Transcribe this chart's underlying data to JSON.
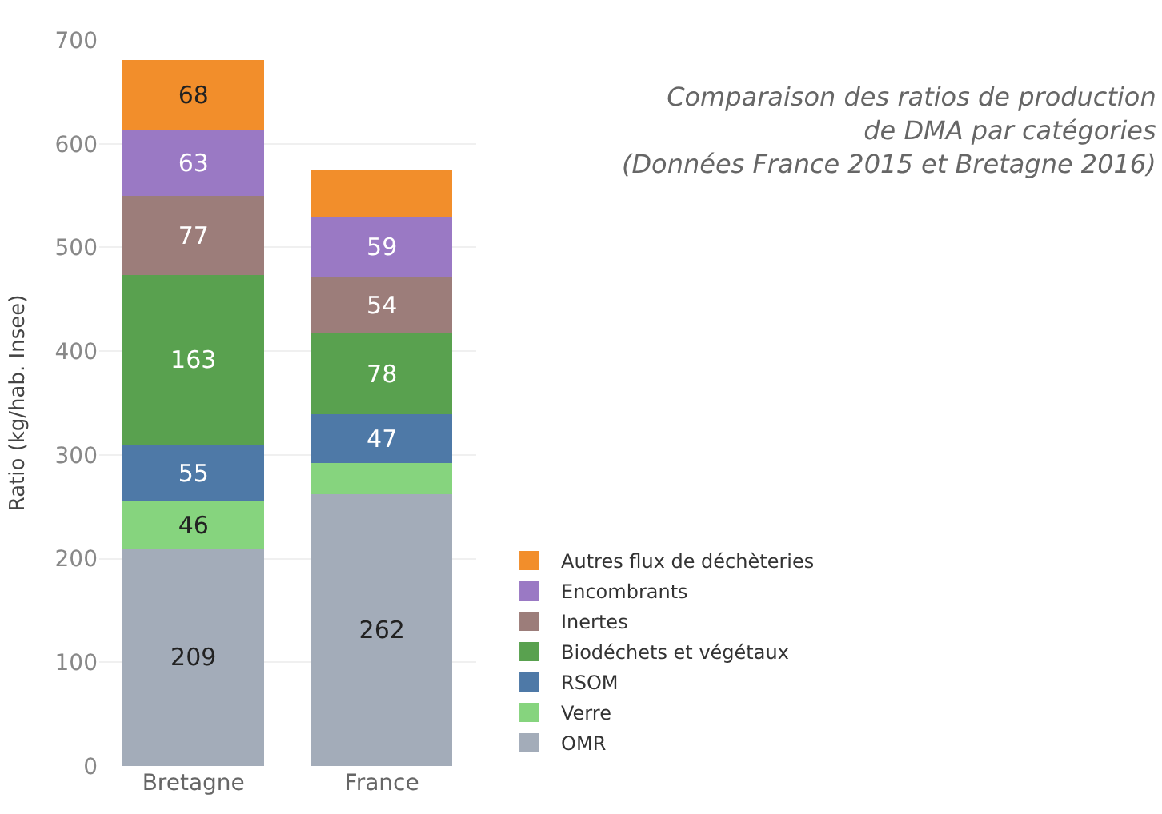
{
  "chart_data": {
    "type": "bar",
    "stacked": true,
    "title": "Comparaison des ratios de production\nde DMA par catégories\n(Données France 2015 et Bretagne 2016)",
    "ylabel": "Ratio (kg/hab. Insee)",
    "categories": [
      "Bretagne",
      "France"
    ],
    "series": [
      {
        "name": "OMR",
        "color": "#a3acb9",
        "values": [
          209,
          262
        ],
        "value_labels": [
          "209",
          "262"
        ]
      },
      {
        "name": "Verre",
        "color": "#86d47e",
        "values": [
          46,
          30
        ],
        "value_labels": [
          "46",
          null
        ]
      },
      {
        "name": "RSOM",
        "color": "#4e79a7",
        "values": [
          55,
          47
        ],
        "value_labels": [
          "55",
          "47"
        ]
      },
      {
        "name": "Biodéchets et végétaux",
        "color": "#59a14f",
        "values": [
          163,
          78
        ],
        "value_labels": [
          "163",
          "78"
        ]
      },
      {
        "name": "Inertes",
        "color": "#9c7d7a",
        "values": [
          77,
          54
        ],
        "value_labels": [
          "77",
          "54"
        ]
      },
      {
        "name": "Encombrants",
        "color": "#9a79c4",
        "values": [
          63,
          59
        ],
        "value_labels": [
          "63",
          "59"
        ]
      },
      {
        "name": "Autres flux de déchèteries",
        "color": "#f28e2b",
        "values": [
          68,
          44
        ],
        "value_labels": [
          "68",
          null
        ]
      }
    ],
    "ylim": [
      0,
      700
    ],
    "yticks": [
      0,
      100,
      200,
      300,
      400,
      500,
      600,
      700
    ],
    "grid": "y",
    "legend": "bottom right"
  }
}
